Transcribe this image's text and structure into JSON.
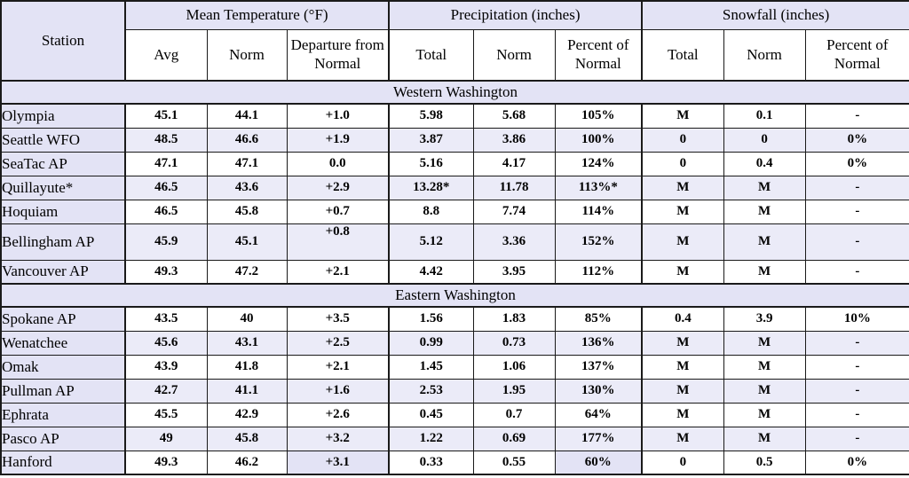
{
  "table": {
    "station_header": "Station",
    "groups": [
      {
        "label": "Mean Temperature (°F)"
      },
      {
        "label": "Precipitation (inches)"
      },
      {
        "label": "Snowfall (inches)"
      }
    ],
    "subheaders": [
      "Avg",
      "Norm",
      "Departure from Normal",
      "Total",
      "Norm",
      "Percent of Normal",
      "Total",
      "Norm",
      "Percent of Normal"
    ],
    "sections": [
      {
        "label": "Western Washington",
        "rows": [
          {
            "station": "Olympia",
            "values": [
              "45.1",
              "44.1",
              "+1.0",
              "5.98",
              "5.68",
              "105%",
              "M",
              "0.1",
              "-"
            ],
            "shaded": false
          },
          {
            "station": "Seattle WFO",
            "values": [
              "48.5",
              "46.6",
              "+1.9",
              "3.87",
              "3.86",
              "100%",
              "0",
              "0",
              "0%"
            ],
            "shaded": true
          },
          {
            "station": "SeaTac AP",
            "values": [
              "47.1",
              "47.1",
              "0.0",
              "5.16",
              "4.17",
              "124%",
              "0",
              "0.4",
              "0%"
            ],
            "shaded": false
          },
          {
            "station": "Quillayute*",
            "values": [
              "46.5",
              "43.6",
              "+2.9",
              "13.28*",
              "11.78",
              "113%*",
              "M",
              "M",
              "-"
            ],
            "shaded": true
          },
          {
            "station": "Hoquiam",
            "values": [
              "46.5",
              "45.8",
              "+0.7",
              "8.8",
              "7.74",
              "114%",
              "M",
              "M",
              "-"
            ],
            "shaded": false
          },
          {
            "station": "Bellingham AP",
            "values": [
              "45.9",
              "45.1",
              "+0.8",
              "5.12",
              "3.36",
              "152%",
              "M",
              "M",
              "-"
            ],
            "shaded": true,
            "tall": true,
            "departure_top": true
          },
          {
            "station": "Vancouver AP",
            "values": [
              "49.3",
              "47.2",
              "+2.1",
              "4.42",
              "3.95",
              "112%",
              "M",
              "M",
              "-"
            ],
            "shaded": false
          }
        ]
      },
      {
        "label": "Eastern Washington",
        "rows": [
          {
            "station": "Spokane AP",
            "values": [
              "43.5",
              "40",
              "+3.5",
              "1.56",
              "1.83",
              "85%",
              "0.4",
              "3.9",
              "10%"
            ],
            "shaded": false
          },
          {
            "station": "Wenatchee",
            "values": [
              "45.6",
              "43.1",
              "+2.5",
              "0.99",
              "0.73",
              "136%",
              "M",
              "M",
              "-"
            ],
            "shaded": true
          },
          {
            "station": "Omak",
            "values": [
              "43.9",
              "41.8",
              "+2.1",
              "1.45",
              "1.06",
              "137%",
              "M",
              "M",
              "-"
            ],
            "shaded": false
          },
          {
            "station": "Pullman AP",
            "values": [
              "42.7",
              "41.1",
              "+1.6",
              "2.53",
              "1.95",
              "130%",
              "M",
              "M",
              "-"
            ],
            "shaded": true
          },
          {
            "station": "Ephrata",
            "values": [
              "45.5",
              "42.9",
              "+2.6",
              "0.45",
              "0.7",
              "64%",
              "M",
              "M",
              "-"
            ],
            "shaded": false
          },
          {
            "station": "Pasco AP",
            "values": [
              "49",
              "45.8",
              "+3.2",
              "1.22",
              "0.69",
              "177%",
              "M",
              "M",
              "-"
            ],
            "shaded": true
          },
          {
            "station": "Hanford",
            "values": [
              "49.3",
              "46.2",
              "+3.1",
              "0.33",
              "0.55",
              "60%",
              "0",
              "0.5",
              "0%"
            ],
            "shaded": false,
            "shaded_cells": [
              2,
              5
            ]
          }
        ]
      }
    ]
  },
  "colors": {
    "header_shade": "#e3e3f5",
    "row_shade": "#ebebf8",
    "border": "#1a1a1a",
    "background": "#ffffff",
    "text": "#000000"
  }
}
